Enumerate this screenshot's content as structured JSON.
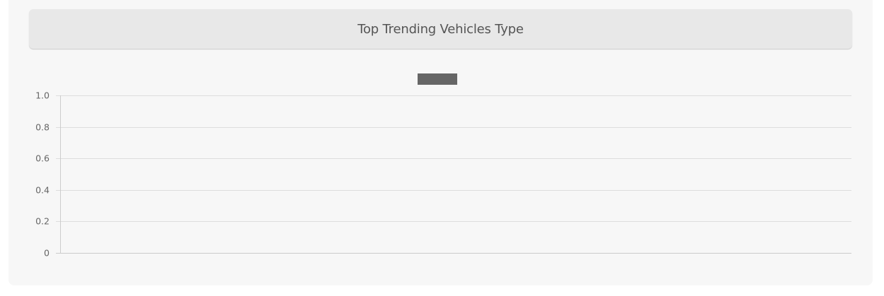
{
  "card": {
    "title": "Top Trending Vehicles Type"
  },
  "chart_data": {
    "type": "bar",
    "title": "",
    "xlabel": "",
    "ylabel": "",
    "categories": [],
    "series": [
      {
        "values": [],
        "color": "#666666"
      }
    ],
    "ylim": [
      0,
      1.0
    ],
    "yticks": [
      "1.0",
      "0.8",
      "0.6",
      "0.4",
      "0.2",
      "0"
    ],
    "grid": true,
    "legend_position": "top-center",
    "colors": {
      "grid": "#dddddd",
      "axis": "#cccccc",
      "tick_text": "#666666",
      "legend_swatch": "#666666"
    }
  }
}
